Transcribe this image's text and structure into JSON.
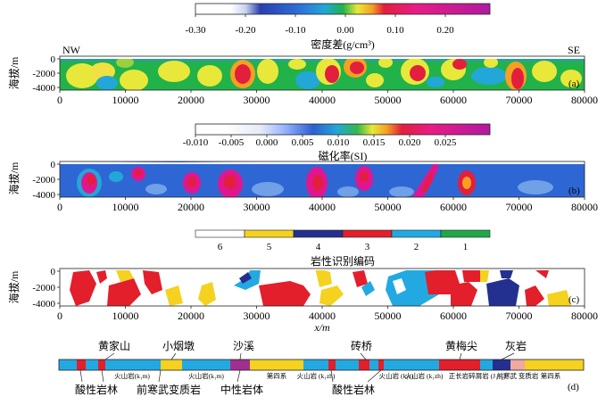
{
  "figure": {
    "panels": [
      {
        "id": "a",
        "label": "(a)",
        "direction_left": "NW",
        "direction_right": "SE",
        "ylabel": "海拔/m",
        "yticks": [
          "0",
          "-2000",
          "-4000"
        ],
        "xticks": [
          "0",
          "10000",
          "20000",
          "30000",
          "40000",
          "50000",
          "60000",
          "70000",
          "80000"
        ],
        "colorbar": {
          "title": "密度差(g/cm³)",
          "ticks": [
            "-0.30",
            "-0.20",
            "-0.10",
            "0.00",
            "0.10",
            "0.20"
          ],
          "colors": [
            "#ffffff",
            "#e6e6ee",
            "#9ab6ff",
            "#1a2da8",
            "#2e6ed8",
            "#22a7d8",
            "#1fb24a",
            "#e8e83a",
            "#f5a023",
            "#e21f3c",
            "#e01690",
            "#b01aa0"
          ]
        }
      },
      {
        "id": "b",
        "label": "(b)",
        "ylabel": "海拔/m",
        "yticks": [
          "0",
          "-2000",
          "-4000"
        ],
        "xticks": [
          "0",
          "10000",
          "20000",
          "30000",
          "40000",
          "50000",
          "60000",
          "70000",
          "80000"
        ],
        "colorbar": {
          "title": "磁化率(SI)",
          "ticks": [
            "-0.010",
            "-0.005",
            "0.000",
            "0.005",
            "0.010",
            "0.015",
            "0.020",
            "0.025"
          ],
          "colors": [
            "#ffffff",
            "#dfe7f4",
            "#9ab6ff",
            "#2d5fd0",
            "#22a7d8",
            "#35b84c",
            "#e8e83a",
            "#f5a023",
            "#e21f3c",
            "#e01690",
            "#b01aa0"
          ]
        }
      },
      {
        "id": "c",
        "label": "(c)",
        "ylabel": "海拔/m",
        "yticks": [
          "0",
          "-2000",
          "-4000"
        ],
        "xticks": [
          "0",
          "10000",
          "20000",
          "30000",
          "40000",
          "50000",
          "60000",
          "70000",
          "80000"
        ],
        "xlabel": "x/m",
        "colorbar": {
          "title": "岩性识别编码",
          "codes": [
            "6",
            "5",
            "4",
            "3",
            "2",
            "1"
          ],
          "colors": [
            "#ffffff",
            "#f4d21f",
            "#23308f",
            "#e21f2b",
            "#23a9e1",
            "#1fa84a"
          ]
        }
      },
      {
        "id": "d",
        "label": "(d)",
        "top_labels": [
          "黄家山",
          "小烟墩",
          "沙溪",
          "砖桥",
          "黄梅尖",
          "灰岩"
        ],
        "bottom_labels": [
          "酸性岩林",
          "前寒武变质岩",
          "中性岩体",
          "酸性岩林"
        ],
        "inbar_labels": [
          "火山岩(k₁m)",
          "火山岩(k₁m)",
          "第四系",
          "火山岩 (k₁zh)",
          "火山岩 (k₁s)",
          "火山岩 (k₁zh)",
          "正长岩",
          "碎屑岩 (J₁₋₂)",
          "前寒武 变质岩",
          "第四系"
        ]
      }
    ]
  }
}
